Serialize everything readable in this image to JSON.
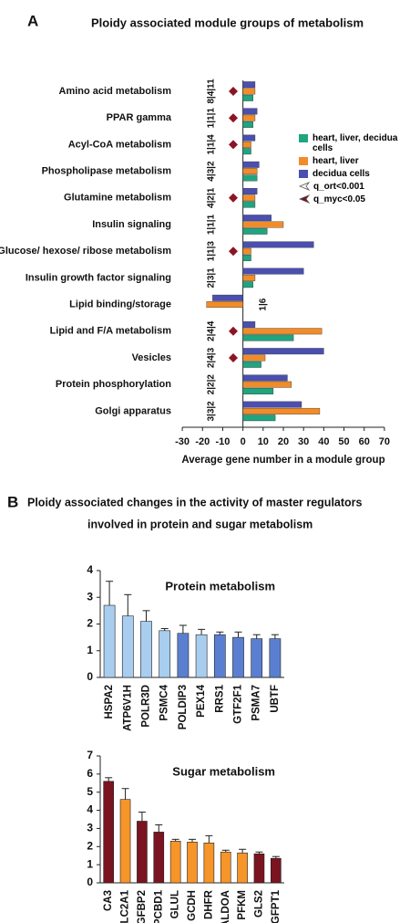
{
  "figure": {
    "panel_a_label": "A",
    "panel_a_title": "Ploidy associated module groups of metabolism",
    "panel_b_label": "B",
    "panel_b_title": [
      "Ploidy associated changes in the activity of master regulators",
      "involved in protein and sugar metabolism"
    ]
  },
  "chart_data": [
    {
      "type": "bar",
      "orientation": "horizontal",
      "categories": [
        "Amino acid metabolism",
        "PPAR gamma",
        "Acyl-CoA metabolism",
        "Phospholipase metabolism",
        "Glutamine metabolism",
        "Insulin signaling",
        "Glucose/ hexose/ ribose metabolism",
        "Insulin growth factor signaling",
        "Lipid binding/storage",
        "Lipid and F/A metabolism",
        "Vesicles",
        "Protein phosphorylation",
        "Golgi apparatus"
      ],
      "counts": [
        "8|4|11",
        "1|1|1",
        "1|1|4",
        "4|3|2",
        "4|2|1",
        "1|1|1",
        "1|1|3",
        "2|3|1",
        "1|6",
        "2|4|4",
        "2|4|3",
        "2|2|2",
        "3|3|2"
      ],
      "diamond": [
        true,
        true,
        true,
        false,
        true,
        false,
        true,
        false,
        false,
        true,
        true,
        false,
        false
      ],
      "series": [
        {
          "name": "heart, liver, decidua cells",
          "color": "#1fa57f",
          "values": [
            5,
            5,
            4,
            7,
            6,
            12,
            4,
            5,
            null,
            25,
            9,
            15,
            16
          ]
        },
        {
          "name": "heart, liver",
          "color": "#f28c28",
          "values": [
            6,
            6,
            4,
            7,
            6,
            20,
            4,
            6,
            -18,
            39,
            11,
            24,
            38
          ]
        },
        {
          "name": "decidua cells",
          "color": "#4a4fb0",
          "values": [
            6,
            7,
            6,
            8,
            7,
            14,
            35,
            30,
            -15,
            6,
            40,
            22,
            29
          ]
        }
      ],
      "markers": [
        {
          "name": "q_ort<0.001",
          "color": "#ffffff"
        },
        {
          "name": "q_myc<0.05",
          "color": "#7a1020"
        }
      ],
      "xlabel": "Average gene number in a module group",
      "xlim": [
        -35,
        75
      ],
      "xticks": [
        -30,
        -20,
        -10,
        0,
        10,
        20,
        30,
        40,
        50,
        60,
        70
      ]
    },
    {
      "type": "bar",
      "title": "Protein metabolism",
      "categories": [
        "HSPA2",
        "ATP6V1H",
        "POLR3D",
        "PSMC4",
        "POLDIP3",
        "PEX14",
        "RRS1",
        "GTF2F1",
        "PSMA7",
        "UBTF"
      ],
      "values": [
        2.7,
        2.3,
        2.1,
        1.75,
        1.65,
        1.6,
        1.6,
        1.5,
        1.45,
        1.45
      ],
      "errors": [
        0.9,
        0.8,
        0.4,
        0.08,
        0.3,
        0.2,
        0.1,
        0.2,
        0.15,
        0.15
      ],
      "colors": [
        "#a8cdee",
        "#a8cdee",
        "#a8cdee",
        "#a8cdee",
        "#5b7fd0",
        "#a8cdee",
        "#5b7fd0",
        "#5b7fd0",
        "#5b7fd0",
        "#5b7fd0"
      ],
      "ylim": [
        0,
        4
      ],
      "yticks": [
        0,
        1,
        2,
        3,
        4
      ]
    },
    {
      "type": "bar",
      "title": "Sugar metabolism",
      "categories": [
        "CA3",
        "SLC2A1",
        "IGFBP2",
        "PCBD1",
        "GLUL",
        "GCDH",
        "DHFR",
        "ALDOA",
        "PFKM",
        "GLS2",
        "GFPT1"
      ],
      "values": [
        5.6,
        4.6,
        3.4,
        2.8,
        2.3,
        2.25,
        2.2,
        1.7,
        1.65,
        1.6,
        1.35
      ],
      "errors": [
        0.2,
        0.6,
        0.5,
        0.4,
        0.1,
        0.15,
        0.4,
        0.1,
        0.2,
        0.1,
        0.1
      ],
      "colors": [
        "#7a1420",
        "#f5952a",
        "#7a1420",
        "#7a1420",
        "#f5952a",
        "#f5952a",
        "#f5952a",
        "#f5952a",
        "#f5952a",
        "#7a1420",
        "#7a1420"
      ],
      "ylim": [
        0,
        7
      ],
      "yticks": [
        0,
        1,
        2,
        3,
        4,
        5,
        6,
        7
      ]
    }
  ]
}
